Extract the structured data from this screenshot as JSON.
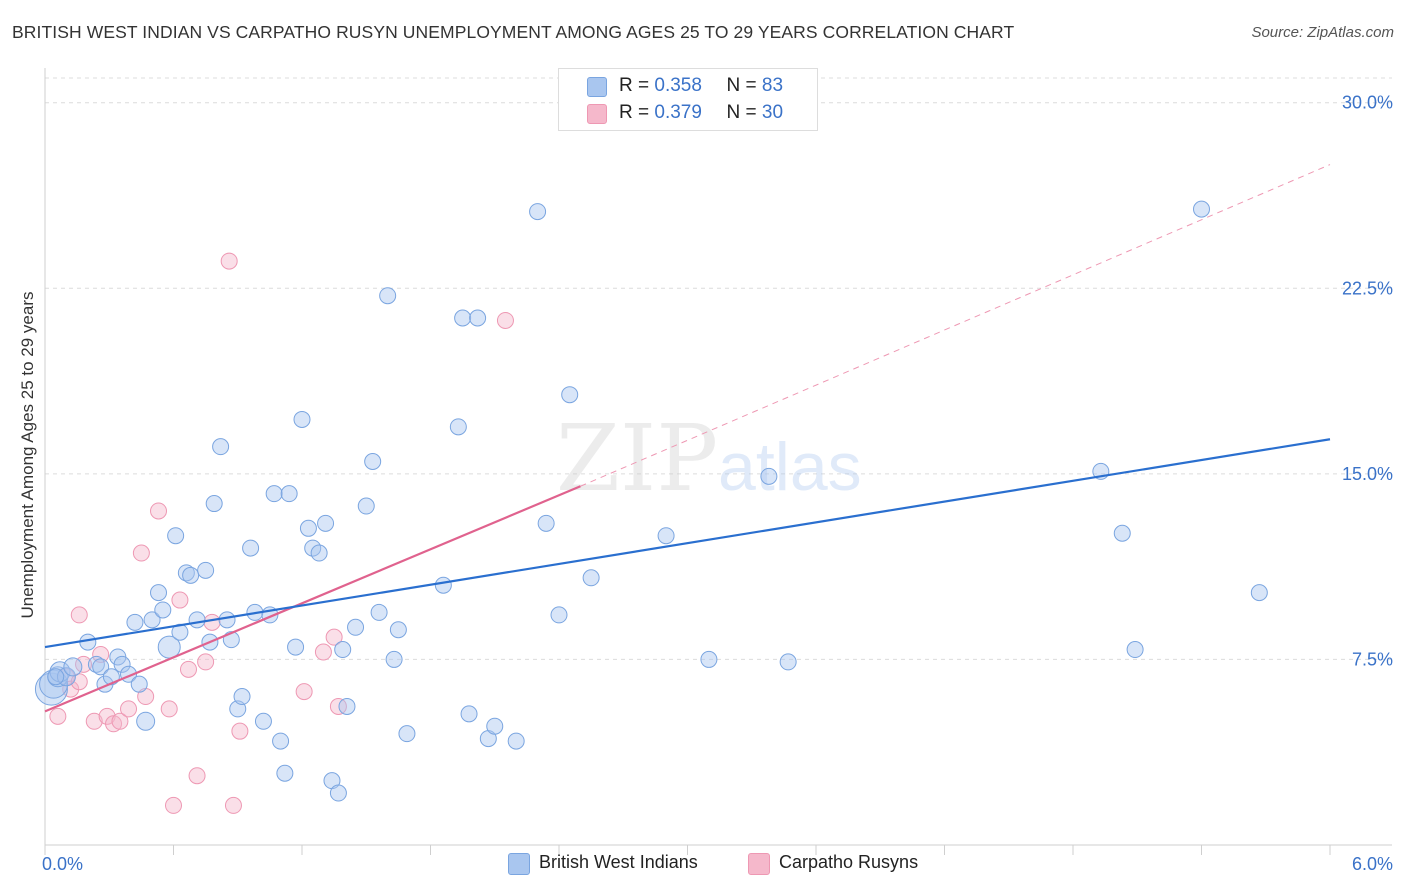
{
  "header": {
    "title": "BRITISH WEST INDIAN VS CARPATHO RUSYN UNEMPLOYMENT AMONG AGES 25 TO 29 YEARS CORRELATION CHART",
    "source": "Source: ZipAtlas.com"
  },
  "legend": {
    "r_label": "R =",
    "n_label": "N =",
    "series1": {
      "r": "0.358",
      "n": "83"
    },
    "series2": {
      "r": "0.379",
      "n": "30"
    }
  },
  "bottom_legend": {
    "series1": "British West Indians",
    "series2": "Carpatho Rusyns"
  },
  "watermark": {
    "zip": "ZIP",
    "atlas": "atlas"
  },
  "colors": {
    "series1_fill": "#a9c6ef",
    "series1_stroke": "#7aa5e0",
    "series1_line": "#2a6fcf",
    "series2_fill": "#f5b8cb",
    "series2_stroke": "#ee98b3",
    "series2_line": "#e0628e",
    "tick_label": "#3a72c8",
    "grid": "#dcdcdc"
  },
  "chart_data": {
    "type": "scatter",
    "title": "BRITISH WEST INDIAN VS CARPATHO RUSYN UNEMPLOYMENT AMONG AGES 25 TO 29 YEARS CORRELATION CHART",
    "xlabel": "",
    "ylabel": "Unemployment Among Ages 25 to 29 years",
    "xlim": [
      0,
      6
    ],
    "ylim": [
      0,
      31
    ],
    "x_tick_labels": [
      "0.0%",
      "6.0%"
    ],
    "y_ticks": [
      7.5,
      15.0,
      22.5,
      30.0
    ],
    "y_tick_labels": [
      "7.5%",
      "15.0%",
      "22.5%",
      "30.0%"
    ],
    "grid": true,
    "legend_position": "top-center",
    "series": [
      {
        "name": "British West Indians",
        "r": 0.358,
        "n": 83,
        "trend": {
          "x": [
            0,
            6
          ],
          "y": [
            8.0,
            16.4
          ],
          "style": "solid"
        },
        "points": [
          [
            0.03,
            6.3,
            16
          ],
          [
            0.04,
            6.5,
            14
          ],
          [
            0.06,
            6.8,
            10
          ],
          [
            0.07,
            7.0,
            10
          ],
          [
            0.1,
            6.8,
            9
          ],
          [
            0.13,
            7.2,
            9
          ],
          [
            0.2,
            8.2,
            8
          ],
          [
            0.24,
            7.3,
            8
          ],
          [
            0.26,
            7.2,
            8
          ],
          [
            0.28,
            6.5,
            8
          ],
          [
            0.31,
            6.8,
            8
          ],
          [
            0.34,
            7.6,
            8
          ],
          [
            0.36,
            7.3,
            8
          ],
          [
            0.39,
            6.9,
            8
          ],
          [
            0.42,
            9.0,
            8
          ],
          [
            0.44,
            6.5,
            8
          ],
          [
            0.47,
            5.0,
            9
          ],
          [
            0.5,
            9.1,
            8
          ],
          [
            0.53,
            10.2,
            8
          ],
          [
            0.55,
            9.5,
            8
          ],
          [
            0.58,
            8.0,
            11
          ],
          [
            0.61,
            12.5,
            8
          ],
          [
            0.63,
            8.6,
            8
          ],
          [
            0.66,
            11.0,
            8
          ],
          [
            0.68,
            10.9,
            8
          ],
          [
            0.71,
            9.1,
            8
          ],
          [
            0.75,
            11.1,
            8
          ],
          [
            0.77,
            8.2,
            8
          ],
          [
            0.79,
            13.8,
            8
          ],
          [
            0.82,
            16.1,
            8
          ],
          [
            0.85,
            9.1,
            8
          ],
          [
            0.87,
            8.3,
            8
          ],
          [
            0.9,
            5.5,
            8
          ],
          [
            0.92,
            6.0,
            8
          ],
          [
            0.96,
            12.0,
            8
          ],
          [
            0.98,
            9.4,
            8
          ],
          [
            1.02,
            5.0,
            8
          ],
          [
            1.05,
            9.3,
            8
          ],
          [
            1.07,
            14.2,
            8
          ],
          [
            1.1,
            4.2,
            8
          ],
          [
            1.12,
            2.9,
            8
          ],
          [
            1.14,
            14.2,
            8
          ],
          [
            1.17,
            8.0,
            8
          ],
          [
            1.2,
            17.2,
            8
          ],
          [
            1.23,
            12.8,
            8
          ],
          [
            1.25,
            12.0,
            8
          ],
          [
            1.28,
            11.8,
            8
          ],
          [
            1.31,
            13.0,
            8
          ],
          [
            1.34,
            2.6,
            8
          ],
          [
            1.37,
            2.1,
            8
          ],
          [
            1.39,
            7.9,
            8
          ],
          [
            1.41,
            5.6,
            8
          ],
          [
            1.45,
            8.8,
            8
          ],
          [
            1.5,
            13.7,
            8
          ],
          [
            1.53,
            15.5,
            8
          ],
          [
            1.56,
            9.4,
            8
          ],
          [
            1.6,
            22.2,
            8
          ],
          [
            1.63,
            7.5,
            8
          ],
          [
            1.65,
            8.7,
            8
          ],
          [
            1.69,
            4.5,
            8
          ],
          [
            1.86,
            10.5,
            8
          ],
          [
            1.93,
            16.9,
            8
          ],
          [
            1.95,
            21.3,
            8
          ],
          [
            2.02,
            21.3,
            8
          ],
          [
            1.98,
            5.3,
            8
          ],
          [
            2.07,
            4.3,
            8
          ],
          [
            2.1,
            4.8,
            8
          ],
          [
            2.2,
            4.2,
            8
          ],
          [
            2.3,
            25.6,
            8
          ],
          [
            2.34,
            13.0,
            8
          ],
          [
            2.4,
            9.3,
            8
          ],
          [
            2.45,
            18.2,
            8
          ],
          [
            2.55,
            10.8,
            8
          ],
          [
            2.9,
            12.5,
            8
          ],
          [
            3.1,
            7.5,
            8
          ],
          [
            3.38,
            14.9,
            8
          ],
          [
            3.47,
            7.4,
            8
          ],
          [
            4.93,
            15.1,
            8
          ],
          [
            5.03,
            12.6,
            8
          ],
          [
            5.09,
            7.9,
            8
          ],
          [
            5.4,
            25.7,
            8
          ],
          [
            5.67,
            10.2,
            8
          ],
          [
            0.05,
            6.8,
            8
          ]
        ]
      },
      {
        "name": "Carpatho Rusyns",
        "r": 0.379,
        "n": 30,
        "trend": {
          "x": [
            0,
            2.5
          ],
          "y": [
            5.4,
            14.5
          ],
          "style": "solid",
          "extended": {
            "x": [
              2.5,
              6
            ],
            "y": [
              14.5,
              27.5
            ],
            "style": "dashed"
          }
        },
        "points": [
          [
            0.06,
            5.2,
            8
          ],
          [
            0.1,
            6.8,
            8
          ],
          [
            0.12,
            6.3,
            8
          ],
          [
            0.16,
            6.6,
            8
          ],
          [
            0.16,
            9.3,
            8
          ],
          [
            0.18,
            7.3,
            8
          ],
          [
            0.23,
            5.0,
            8
          ],
          [
            0.26,
            7.7,
            8
          ],
          [
            0.29,
            5.2,
            8
          ],
          [
            0.32,
            4.9,
            8
          ],
          [
            0.35,
            5.0,
            8
          ],
          [
            0.39,
            5.5,
            8
          ],
          [
            0.45,
            11.8,
            8
          ],
          [
            0.47,
            6.0,
            8
          ],
          [
            0.53,
            13.5,
            8
          ],
          [
            0.58,
            5.5,
            8
          ],
          [
            0.6,
            1.6,
            8
          ],
          [
            0.63,
            9.9,
            8
          ],
          [
            0.67,
            7.1,
            8
          ],
          [
            0.71,
            2.8,
            8
          ],
          [
            0.75,
            7.4,
            8
          ],
          [
            0.78,
            9.0,
            8
          ],
          [
            0.86,
            23.6,
            8
          ],
          [
            0.88,
            1.6,
            8
          ],
          [
            0.91,
            4.6,
            8
          ],
          [
            1.21,
            6.2,
            8
          ],
          [
            1.3,
            7.8,
            8
          ],
          [
            1.35,
            8.4,
            8
          ],
          [
            1.37,
            5.6,
            8
          ],
          [
            2.15,
            21.2,
            8
          ]
        ]
      }
    ]
  }
}
